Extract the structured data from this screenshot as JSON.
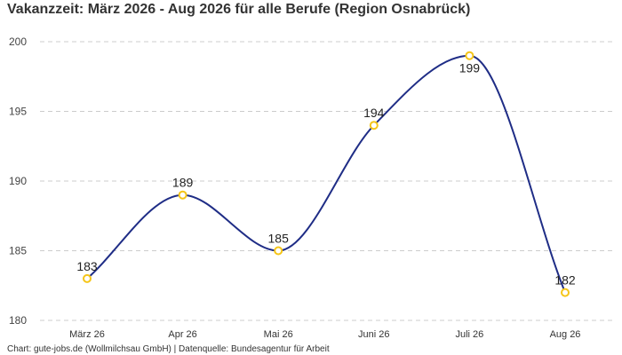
{
  "chart_data": {
    "type": "line",
    "title": "Vakanzzeit: März 2026 - Aug 2026 für alle Berufe (Region Osnabrück)",
    "categories": [
      "März 26",
      "Apr 26",
      "Mai 26",
      "Juni 26",
      "Juli 26",
      "Aug 26"
    ],
    "series": [
      {
        "values": [
          183,
          189,
          185,
          194,
          199,
          182
        ]
      }
    ],
    "ylim": [
      180,
      200
    ],
    "yticks": [
      180,
      185,
      190,
      195,
      200
    ],
    "grid": true,
    "line_color": "#1f2d86",
    "marker_color": "#f5c518",
    "grid_color": "#cccccc"
  },
  "caption": "Chart: gute-jobs.de (Wollmilchsau GmbH) | Datenquelle: Bundesagentur für Arbeit"
}
